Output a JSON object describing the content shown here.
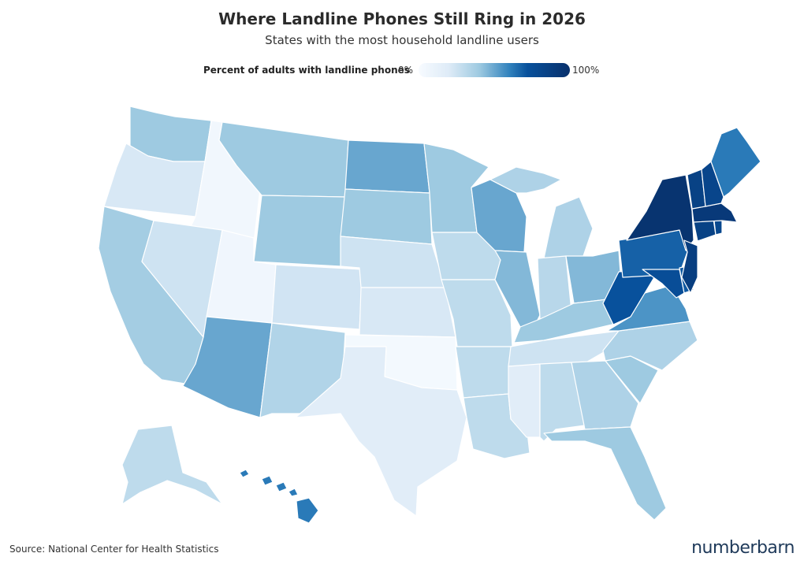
{
  "title": "Where Landline Phones Still Ring in 2026",
  "subtitle": "States with the most household landline users",
  "legend": {
    "title": "Percent of adults with landline phones",
    "min_label": "0%",
    "max_label": "100%",
    "color_low": "#f7fbff",
    "color_high": "#08306b"
  },
  "source": "Source: National Center for Health Statistics",
  "brand": "numberbarn",
  "map_data": {
    "type": "choropleth",
    "scale": [
      0,
      100
    ],
    "states": [
      {
        "abbr": "WA",
        "value": 40
      },
      {
        "abbr": "OR",
        "value": 22
      },
      {
        "abbr": "CA",
        "value": 38
      },
      {
        "abbr": "ID",
        "value": 5
      },
      {
        "abbr": "NV",
        "value": 25
      },
      {
        "abbr": "UT",
        "value": 6
      },
      {
        "abbr": "AZ",
        "value": 50
      },
      {
        "abbr": "MT",
        "value": 40
      },
      {
        "abbr": "WY",
        "value": 40
      },
      {
        "abbr": "CO",
        "value": 24
      },
      {
        "abbr": "NM",
        "value": 34
      },
      {
        "abbr": "ND",
        "value": 50
      },
      {
        "abbr": "SD",
        "value": 40
      },
      {
        "abbr": "NE",
        "value": 25
      },
      {
        "abbr": "KS",
        "value": 22
      },
      {
        "abbr": "OK",
        "value": 3
      },
      {
        "abbr": "TX",
        "value": 18
      },
      {
        "abbr": "MN",
        "value": 40
      },
      {
        "abbr": "IA",
        "value": 30
      },
      {
        "abbr": "MO",
        "value": 30
      },
      {
        "abbr": "AR",
        "value": 30
      },
      {
        "abbr": "LA",
        "value": 30
      },
      {
        "abbr": "WI",
        "value": 50
      },
      {
        "abbr": "IL",
        "value": 45
      },
      {
        "abbr": "MI",
        "value": 35
      },
      {
        "abbr": "IN",
        "value": 32
      },
      {
        "abbr": "OH",
        "value": 45
      },
      {
        "abbr": "KY",
        "value": 40
      },
      {
        "abbr": "TN",
        "value": 25
      },
      {
        "abbr": "MS",
        "value": 18
      },
      {
        "abbr": "AL",
        "value": 30
      },
      {
        "abbr": "GA",
        "value": 35
      },
      {
        "abbr": "FL",
        "value": 40
      },
      {
        "abbr": "SC",
        "value": 40
      },
      {
        "abbr": "NC",
        "value": 35
      },
      {
        "abbr": "VA",
        "value": 55
      },
      {
        "abbr": "WV",
        "value": 72
      },
      {
        "abbr": "PA",
        "value": 68
      },
      {
        "abbr": "NY",
        "value": 97
      },
      {
        "abbr": "MD",
        "value": 75
      },
      {
        "abbr": "DE",
        "value": 70
      },
      {
        "abbr": "NJ",
        "value": 88
      },
      {
        "abbr": "CT",
        "value": 85
      },
      {
        "abbr": "RI",
        "value": 80
      },
      {
        "abbr": "MA",
        "value": 92
      },
      {
        "abbr": "VT",
        "value": 85
      },
      {
        "abbr": "NH",
        "value": 82
      },
      {
        "abbr": "ME",
        "value": 62
      },
      {
        "abbr": "AK",
        "value": 30
      },
      {
        "abbr": "HI",
        "value": 62
      }
    ]
  }
}
